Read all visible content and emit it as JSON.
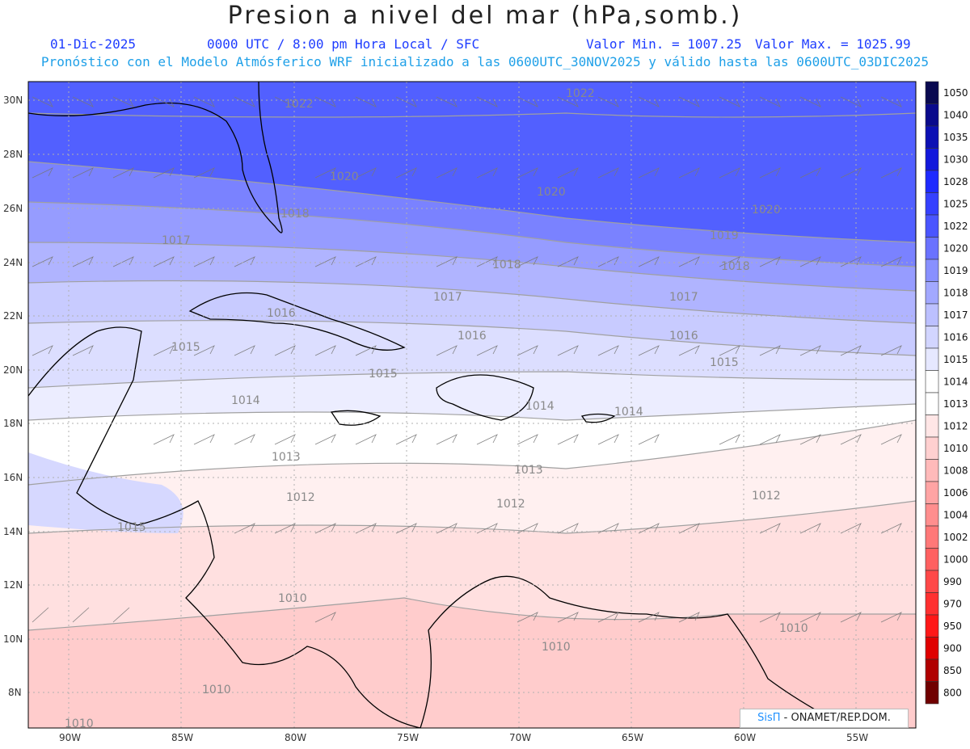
{
  "title": "Presion a nivel del mar (hPa,somb.)",
  "date": "01-Dic-2025",
  "time_info": "0000 UTC / 8:00 pm Hora Local / SFC",
  "min_label": "Valor Min. = 1007.25",
  "max_label": "Valor Max. = 1025.99",
  "forecast_info": "Pronóstico con el Modelo Atmósferico WRF inicializado a las 0600UTC_30NOV2025 y válido hasta las  0600UTC_03DIC2025",
  "lat_labels": [
    "30N",
    "28N",
    "26N",
    "24N",
    "22N",
    "20N",
    "18N",
    "16N",
    "14N",
    "12N",
    "10N",
    "8N"
  ],
  "lon_labels": [
    "90W",
    "85W",
    "80W",
    "75W",
    "70W",
    "65W",
    "60W",
    "55W"
  ],
  "colorbar": {
    "levels": [
      "1050",
      "1040",
      "1035",
      "1030",
      "1028",
      "1025",
      "1022",
      "1020",
      "1019",
      "1018",
      "1017",
      "1016",
      "1015",
      "1014",
      "1013",
      "1012",
      "1010",
      "1008",
      "1006",
      "1004",
      "1002",
      "1000",
      "990",
      "970",
      "950",
      "900",
      "850",
      "800"
    ],
    "colors": [
      "#0a0a50",
      "#0a0a8c",
      "#0c10b4",
      "#1218dc",
      "#1e2aff",
      "#3540ff",
      "#4a55ff",
      "#6a72ff",
      "#8890ff",
      "#a2a8ff",
      "#bcc0ff",
      "#d2d5ff",
      "#e6e8ff",
      "#ffffff",
      "#ffffff",
      "#ffe6e6",
      "#ffd0d0",
      "#ffbaba",
      "#ffa4a4",
      "#ff8e8e",
      "#ff7878",
      "#ff6060",
      "#ff4848",
      "#ff3030",
      "#ff1818",
      "#e00000",
      "#b00000",
      "#700000"
    ]
  },
  "isobar_labels": [
    "1022",
    "1022",
    "1020",
    "1020",
    "1020",
    "1019",
    "1018",
    "1018",
    "1018",
    "1017",
    "1017",
    "1017",
    "1016",
    "1016",
    "1016",
    "1015",
    "1015",
    "1015",
    "1015",
    "1014",
    "1014",
    "1014",
    "1013",
    "1013",
    "1012",
    "1012",
    "1012",
    "1010",
    "1010",
    "1010",
    "1010",
    "1010"
  ],
  "credit": {
    "sis": "SisΠ",
    "text": " - ONAMET/REP.DOM."
  }
}
